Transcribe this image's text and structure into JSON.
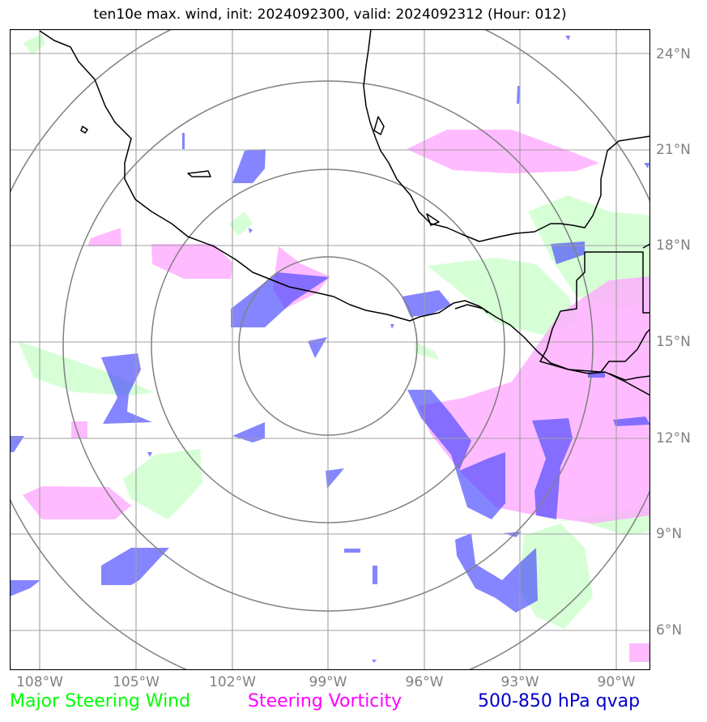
{
  "title": "ten10e max. wind, init: 2024092300, valid: 2024092312 (Hour: 012)",
  "lon_labels": [
    "108°W",
    "105°W",
    "102°W",
    "99°W",
    "96°W",
    "93°W",
    "90°W"
  ],
  "lat_labels": [
    "24°N",
    "21°N",
    "18°N",
    "15°N",
    "12°N",
    "9°N",
    "6°N"
  ],
  "legend": {
    "wind": "Major Steering Wind",
    "vorticity": "Steering Vorticity",
    "qvap": "500-850 hPa qvap"
  },
  "colors": {
    "wind": "#00ff00",
    "vorticity": "#ff00ff",
    "qvap": "#0000cc",
    "grid": "#a0a0a0",
    "rings": "#808080",
    "coast": "#000000"
  },
  "map_extent": {
    "lon": [
      -109,
      -89
    ],
    "lat": [
      4.9,
      24.9
    ]
  },
  "ring_center": {
    "lon": -99,
    "lat": 14.9
  }
}
